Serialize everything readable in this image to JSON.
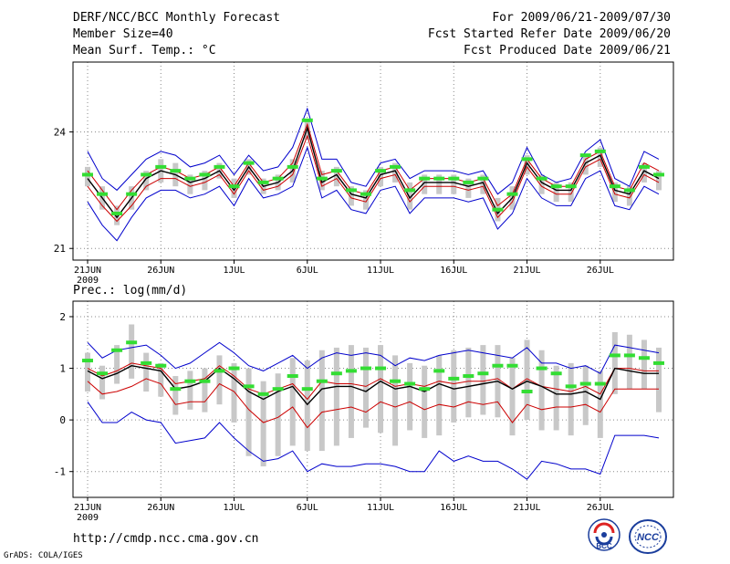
{
  "header": {
    "title": "DERF/NCC/BCC Monthly Forecast",
    "member_size": "Member Size=40",
    "variable": "Mean Surf. Temp.: °C",
    "period": "For 2009/06/21-2009/07/30",
    "started": "Fcst Started Refer Date 2009/06/20",
    "produced": "Fcst Produced Date 2009/06/21"
  },
  "footer": {
    "url": "http://cmdp.ncc.cma.gov.cn",
    "grads": "GrADS: COLA/IGES",
    "logo_bcc": "BCC",
    "logo_ncc": "NCC"
  },
  "colors": {
    "envelope": "#0000cc",
    "spread": "#cc0000",
    "mean": "#000000",
    "member_bar": "#c8c8c8",
    "median": "#33dd33",
    "grid": "#888888"
  },
  "chart_data": [
    {
      "type": "line",
      "title": "Mean Surf. Temp.: °C",
      "ylim": [
        20.7,
        25.8
      ],
      "yticks": [
        21,
        24
      ],
      "xticks": [
        {
          "day": 1,
          "label": "21JUN",
          "sub": "2009"
        },
        {
          "day": 6,
          "label": "26JUN"
        },
        {
          "day": 11,
          "label": "1JUL"
        },
        {
          "day": 16,
          "label": "6JUL"
        },
        {
          "day": 21,
          "label": "11JUL"
        },
        {
          "day": 26,
          "label": "16JUL"
        },
        {
          "day": 31,
          "label": "21JUL"
        },
        {
          "day": 36,
          "label": "26JUL"
        }
      ],
      "days": 40,
      "series": [
        {
          "name": "max",
          "role": "envelope",
          "values": [
            23.5,
            22.8,
            22.5,
            22.9,
            23.3,
            23.5,
            23.4,
            23.1,
            23.2,
            23.4,
            22.9,
            23.4,
            23.0,
            23.1,
            23.6,
            24.6,
            23.3,
            23.3,
            22.7,
            22.6,
            23.2,
            23.3,
            22.8,
            23.0,
            23.0,
            23.0,
            22.9,
            23.0,
            22.4,
            22.7,
            23.6,
            22.9,
            22.7,
            22.8,
            23.5,
            23.8,
            22.8,
            22.6,
            23.5,
            23.3
          ]
        },
        {
          "name": "upper",
          "role": "spread",
          "values": [
            23.0,
            22.5,
            22.0,
            22.5,
            22.9,
            23.1,
            23.0,
            22.8,
            22.9,
            23.1,
            22.6,
            23.2,
            22.7,
            22.8,
            23.2,
            24.2,
            22.9,
            23.0,
            22.5,
            22.4,
            23.0,
            23.1,
            22.5,
            22.8,
            22.8,
            22.8,
            22.7,
            22.8,
            22.1,
            22.4,
            23.3,
            22.8,
            22.6,
            22.6,
            23.3,
            23.5,
            22.6,
            22.5,
            23.2,
            23.0
          ]
        },
        {
          "name": "mean",
          "role": "mean",
          "values": [
            22.8,
            22.3,
            21.8,
            22.3,
            22.8,
            23.0,
            22.9,
            22.7,
            22.8,
            23.0,
            22.5,
            23.1,
            22.6,
            22.7,
            23.0,
            24.1,
            22.7,
            22.9,
            22.4,
            22.3,
            22.9,
            23.0,
            22.3,
            22.7,
            22.7,
            22.7,
            22.6,
            22.7,
            21.9,
            22.3,
            23.2,
            22.7,
            22.5,
            22.5,
            23.2,
            23.4,
            22.5,
            22.4,
            23.0,
            22.8
          ]
        },
        {
          "name": "lower",
          "role": "spread",
          "values": [
            22.6,
            22.1,
            21.7,
            22.1,
            22.6,
            22.8,
            22.8,
            22.6,
            22.7,
            22.9,
            22.4,
            23.0,
            22.5,
            22.6,
            22.9,
            23.9,
            22.6,
            22.8,
            22.3,
            22.2,
            22.8,
            22.9,
            22.2,
            22.6,
            22.6,
            22.6,
            22.5,
            22.6,
            21.8,
            22.2,
            23.1,
            22.6,
            22.4,
            22.4,
            23.1,
            23.3,
            22.4,
            22.3,
            22.9,
            22.7
          ]
        },
        {
          "name": "min",
          "role": "envelope",
          "values": [
            22.2,
            21.6,
            21.2,
            21.8,
            22.3,
            22.5,
            22.5,
            22.3,
            22.4,
            22.6,
            22.1,
            22.8,
            22.3,
            22.4,
            22.6,
            23.6,
            22.3,
            22.5,
            22.0,
            21.9,
            22.5,
            22.6,
            21.9,
            22.3,
            22.3,
            22.3,
            22.2,
            22.3,
            21.5,
            21.9,
            22.8,
            22.3,
            22.1,
            22.1,
            22.8,
            23.0,
            22.1,
            22.0,
            22.6,
            22.4
          ]
        }
      ],
      "bars": {
        "name": "member_range",
        "low": [
          22.6,
          22.0,
          21.6,
          22.0,
          22.5,
          22.7,
          22.6,
          22.4,
          22.5,
          22.8,
          22.3,
          22.9,
          22.4,
          22.5,
          22.7,
          23.8,
          22.5,
          22.6,
          22.1,
          22.0,
          22.6,
          22.7,
          22.0,
          22.4,
          22.4,
          22.4,
          22.3,
          22.4,
          21.7,
          22.0,
          22.9,
          22.4,
          22.2,
          22.2,
          22.9,
          23.1,
          22.2,
          22.1,
          22.7,
          22.5
        ],
        "high": [
          23.1,
          22.6,
          22.1,
          22.6,
          23.0,
          23.3,
          23.2,
          22.9,
          23.0,
          23.2,
          22.8,
          23.3,
          22.8,
          22.9,
          23.3,
          24.3,
          23.0,
          23.1,
          22.6,
          22.5,
          23.1,
          23.2,
          22.7,
          22.9,
          22.9,
          22.9,
          22.8,
          22.9,
          22.3,
          22.6,
          23.4,
          22.9,
          22.7,
          22.7,
          23.4,
          23.6,
          22.7,
          22.6,
          23.2,
          23.0
        ]
      },
      "median": [
        22.9,
        22.4,
        21.9,
        22.4,
        22.9,
        23.1,
        23.0,
        22.8,
        22.9,
        23.1,
        22.6,
        23.2,
        22.7,
        22.8,
        23.1,
        24.3,
        22.8,
        23.0,
        22.5,
        22.4,
        23.0,
        23.1,
        22.5,
        22.8,
        22.8,
        22.8,
        22.7,
        22.8,
        22.0,
        22.4,
        23.3,
        22.8,
        22.6,
        22.6,
        23.4,
        23.5,
        22.6,
        22.5,
        23.1,
        22.9
      ]
    },
    {
      "type": "line",
      "title": "Prec.: log(mm/d)",
      "ylim": [
        -1.5,
        2.3
      ],
      "yticks": [
        -1,
        0,
        1,
        2
      ],
      "days": 40,
      "series": [
        {
          "name": "max",
          "role": "envelope",
          "values": [
            1.5,
            1.2,
            1.35,
            1.4,
            1.45,
            1.25,
            1.0,
            1.1,
            1.3,
            1.5,
            1.3,
            1.05,
            0.95,
            1.1,
            1.25,
            1.0,
            1.2,
            1.3,
            1.25,
            1.3,
            1.25,
            1.05,
            1.2,
            1.15,
            1.25,
            1.3,
            1.35,
            1.3,
            1.25,
            1.2,
            1.4,
            1.1,
            1.1,
            1.0,
            1.05,
            0.9,
            1.45,
            1.4,
            1.35,
            1.3
          ]
        },
        {
          "name": "upper",
          "role": "spread",
          "values": [
            1.0,
            0.85,
            0.95,
            1.1,
            1.05,
            1.0,
            0.7,
            0.75,
            0.8,
            1.05,
            0.85,
            0.6,
            0.5,
            0.6,
            0.7,
            0.4,
            0.75,
            0.7,
            0.7,
            0.65,
            0.8,
            0.65,
            0.7,
            0.65,
            0.75,
            0.7,
            0.75,
            0.75,
            0.8,
            0.6,
            0.8,
            0.65,
            0.6,
            0.55,
            0.65,
            0.5,
            1.0,
            1.0,
            0.95,
            0.95
          ]
        },
        {
          "name": "mean",
          "role": "mean",
          "values": [
            0.95,
            0.8,
            0.9,
            1.05,
            1.0,
            0.95,
            0.6,
            0.65,
            0.75,
            1.0,
            0.8,
            0.55,
            0.4,
            0.55,
            0.65,
            0.3,
            0.6,
            0.65,
            0.65,
            0.55,
            0.75,
            0.6,
            0.65,
            0.55,
            0.7,
            0.6,
            0.65,
            0.7,
            0.75,
            0.6,
            0.75,
            0.65,
            0.5,
            0.5,
            0.55,
            0.4,
            1.0,
            0.95,
            0.9,
            0.9
          ]
        },
        {
          "name": "lower",
          "role": "spread",
          "values": [
            0.75,
            0.5,
            0.55,
            0.65,
            0.8,
            0.7,
            0.3,
            0.35,
            0.35,
            0.7,
            0.55,
            0.2,
            -0.05,
            0.05,
            0.25,
            -0.15,
            0.15,
            0.2,
            0.25,
            0.15,
            0.35,
            0.25,
            0.35,
            0.2,
            0.3,
            0.25,
            0.35,
            0.3,
            0.35,
            -0.05,
            0.3,
            0.2,
            0.25,
            0.25,
            0.3,
            0.15,
            0.6,
            0.6,
            0.6,
            0.6
          ]
        },
        {
          "name": "min",
          "role": "envelope",
          "values": [
            0.35,
            -0.05,
            -0.05,
            0.15,
            0.0,
            -0.05,
            -0.45,
            -0.4,
            -0.35,
            -0.05,
            -0.35,
            -0.6,
            -0.8,
            -0.75,
            -0.6,
            -1.0,
            -0.85,
            -0.9,
            -0.9,
            -0.85,
            -0.85,
            -0.9,
            -1.0,
            -1.0,
            -0.6,
            -0.8,
            -0.7,
            -0.8,
            -0.8,
            -0.95,
            -1.15,
            -0.8,
            -0.85,
            -0.95,
            -0.95,
            -1.05,
            -0.3,
            -0.3,
            -0.3,
            -0.35
          ]
        }
      ],
      "bars": {
        "name": "member_range",
        "low": [
          0.55,
          0.4,
          0.7,
          0.8,
          0.55,
          0.45,
          0.1,
          0.2,
          0.15,
          0.3,
          -0.05,
          -0.7,
          -0.9,
          -0.7,
          -0.5,
          -0.6,
          -0.6,
          -0.5,
          -0.35,
          -0.15,
          -0.25,
          -0.5,
          -0.2,
          -0.35,
          -0.3,
          -0.05,
          0.05,
          0.1,
          0.05,
          -0.3,
          0.0,
          -0.2,
          -0.2,
          -0.3,
          -0.1,
          -0.35,
          0.5,
          0.6,
          0.6,
          0.15
        ],
        "high": [
          1.3,
          1.05,
          1.45,
          1.85,
          1.3,
          1.1,
          0.85,
          0.95,
          1.0,
          1.25,
          1.1,
          1.0,
          0.75,
          0.9,
          1.2,
          1.15,
          1.35,
          1.4,
          1.45,
          1.4,
          1.45,
          1.25,
          1.1,
          1.05,
          1.25,
          1.35,
          1.4,
          1.45,
          1.45,
          1.2,
          1.55,
          1.35,
          1.05,
          1.1,
          1.05,
          0.95,
          1.7,
          1.65,
          1.55,
          1.4
        ]
      },
      "median": [
        1.15,
        0.9,
        1.35,
        1.5,
        1.1,
        1.05,
        0.6,
        0.75,
        0.75,
        0.95,
        1.0,
        0.65,
        0.5,
        0.6,
        0.85,
        0.6,
        0.75,
        0.9,
        0.95,
        1.0,
        1.0,
        0.75,
        0.7,
        0.6,
        0.95,
        0.8,
        0.85,
        0.9,
        1.05,
        1.05,
        0.55,
        1.0,
        0.9,
        0.65,
        0.7,
        0.7,
        1.25,
        1.25,
        1.2,
        1.1
      ]
    }
  ]
}
